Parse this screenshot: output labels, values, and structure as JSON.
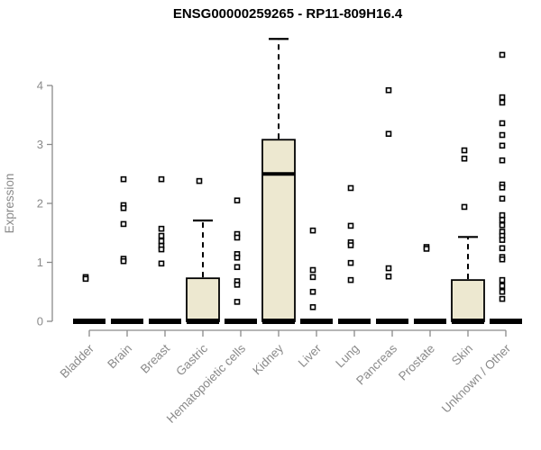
{
  "chart_data": {
    "type": "boxplot",
    "title": "ENSG00000259265 - RP11-809H16.4",
    "ylabel": "Expression",
    "xlabel": "",
    "ylim": [
      0,
      4.9
    ],
    "yticks": [
      0,
      1,
      2,
      3,
      4
    ],
    "grid": "off",
    "legend": "none",
    "categories": [
      "Bladder",
      "Brain",
      "Breast",
      "Gastric",
      "Hematopoietic cells",
      "Kidney",
      "Liver",
      "Lung",
      "Pancreas",
      "Prostate",
      "Skin",
      "Unknown / Other"
    ],
    "series": [
      {
        "name": "Bladder",
        "q1": 0,
        "median": 0,
        "q3": 0,
        "whisker_low": 0,
        "whisker_high": 0,
        "outliers": [
          0.75,
          0.72
        ]
      },
      {
        "name": "Brain",
        "q1": 0,
        "median": 0,
        "q3": 0,
        "whisker_low": 0,
        "whisker_high": 0,
        "outliers": [
          2.41,
          1.97,
          1.92,
          1.65,
          1.06,
          1.02
        ]
      },
      {
        "name": "Breast",
        "q1": 0,
        "median": 0,
        "q3": 0,
        "whisker_low": 0,
        "whisker_high": 0,
        "outliers": [
          2.41,
          1.57,
          1.45,
          1.36,
          1.28,
          1.22,
          0.98
        ]
      },
      {
        "name": "Gastric",
        "q1": 0,
        "median": 0,
        "q3": 0.73,
        "whisker_low": 0,
        "whisker_high": 1.71,
        "outliers": [
          2.38
        ]
      },
      {
        "name": "Hematopoietic cells",
        "q1": 0,
        "median": 0,
        "q3": 0,
        "whisker_low": 0,
        "whisker_high": 0,
        "outliers": [
          2.05,
          1.48,
          1.42,
          1.14,
          1.08,
          0.92,
          0.68,
          0.62,
          0.33
        ]
      },
      {
        "name": "Kidney",
        "q1": 0,
        "median": 2.5,
        "q3": 3.08,
        "whisker_low": 0,
        "whisker_high": 4.79,
        "outliers": []
      },
      {
        "name": "Liver",
        "q1": 0,
        "median": 0,
        "q3": 0,
        "whisker_low": 0,
        "whisker_high": 0,
        "outliers": [
          1.54,
          0.87,
          0.75,
          0.5,
          0.24
        ]
      },
      {
        "name": "Lung",
        "q1": 0,
        "median": 0,
        "q3": 0,
        "whisker_low": 0,
        "whisker_high": 0,
        "outliers": [
          2.26,
          1.62,
          1.34,
          1.29,
          0.99,
          0.7
        ]
      },
      {
        "name": "Pancreas",
        "q1": 0,
        "median": 0,
        "q3": 0,
        "whisker_low": 0,
        "whisker_high": 0,
        "outliers": [
          3.92,
          3.18,
          0.9,
          0.76
        ]
      },
      {
        "name": "Prostate",
        "q1": 0,
        "median": 0,
        "q3": 0,
        "whisker_low": 0,
        "whisker_high": 0,
        "outliers": [
          1.26,
          1.23
        ]
      },
      {
        "name": "Skin",
        "q1": 0,
        "median": 0,
        "q3": 0.7,
        "whisker_low": 0,
        "whisker_high": 1.43,
        "outliers": [
          2.9,
          2.76,
          1.94
        ]
      },
      {
        "name": "Unknown / Other",
        "q1": 0,
        "median": 0,
        "q3": 0,
        "whisker_low": 0,
        "whisker_high": 0,
        "outliers": [
          4.52,
          3.8,
          3.71,
          3.36,
          3.16,
          2.98,
          2.73,
          2.32,
          2.27,
          2.08,
          1.8,
          1.72,
          1.63,
          1.52,
          1.45,
          1.38,
          1.24,
          1.09,
          1.05,
          0.7,
          0.6,
          0.5,
          0.38
        ]
      }
    ],
    "colors": {
      "box_fill": "#EDE8D0",
      "box_border": "#000000",
      "median": "#000000",
      "whisker": "#000000",
      "outlier": "#000000",
      "axis": "#8a8a8a",
      "tick_label": "#8a8a8a",
      "title": "#000000",
      "background": "#ffffff"
    }
  }
}
